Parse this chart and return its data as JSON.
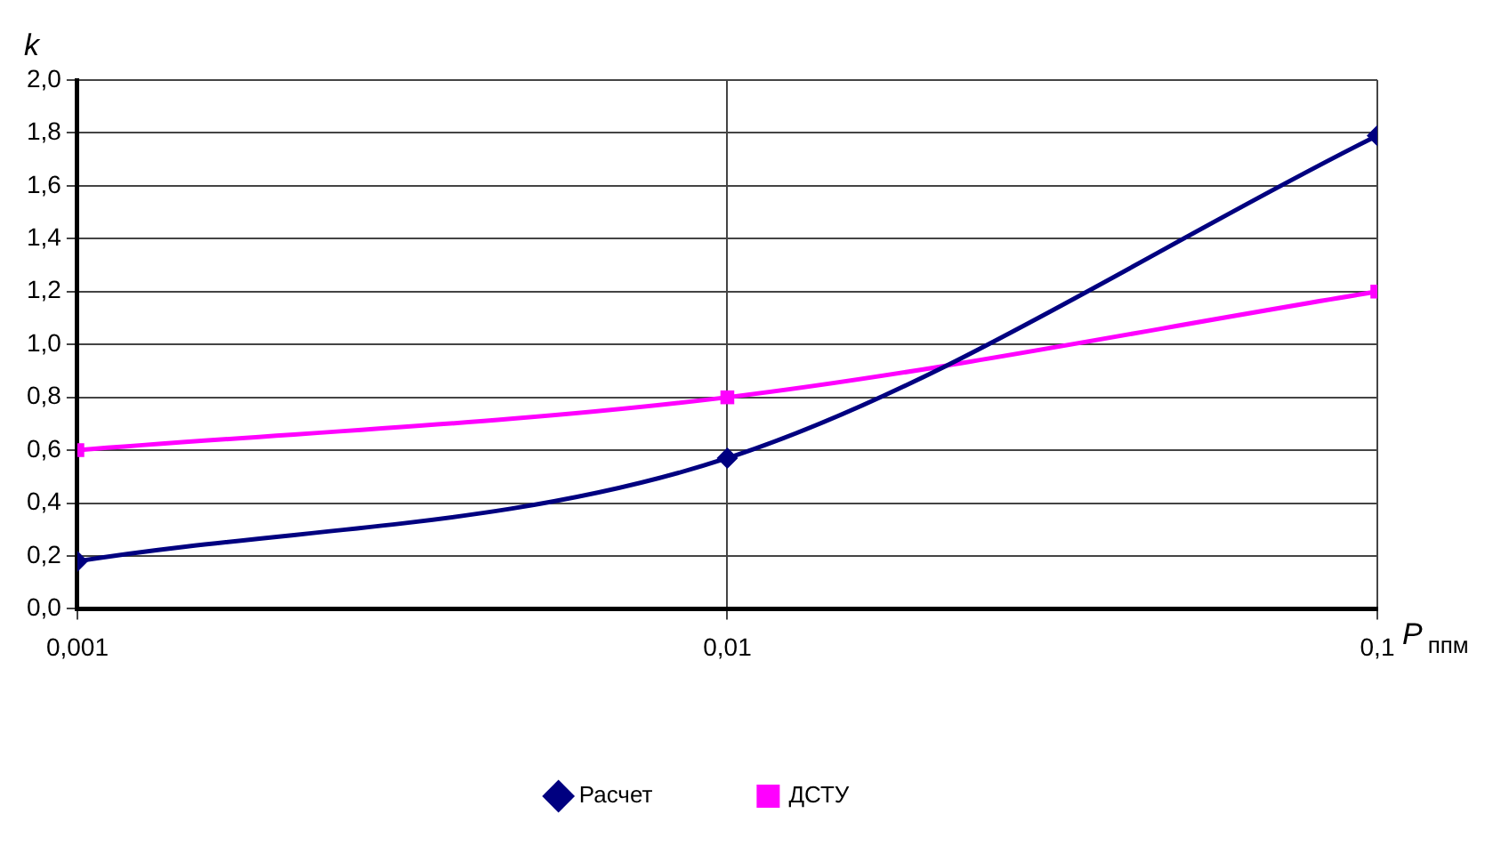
{
  "chart_data": {
    "type": "line",
    "xlabel": "P$_{ппм}$",
    "ylabel": "k",
    "x": [
      0.001,
      0.01,
      0.1
    ],
    "series": [
      {
        "name": "Расчет",
        "color": "#000080",
        "marker": "diamond",
        "values": [
          0.18,
          0.57,
          1.79
        ]
      },
      {
        "name": "ДСТУ",
        "color": "#ff00ff",
        "marker": "square",
        "values": [
          0.6,
          0.8,
          1.2
        ]
      }
    ],
    "log": "x",
    "xlim": [
      0.001,
      0.1
    ],
    "xticks": [
      {
        "value": 0.001,
        "label": "0,001"
      },
      {
        "value": 0.01,
        "label": "0,01"
      },
      {
        "value": 0.1,
        "label": "0,1"
      }
    ],
    "ylim": [
      0,
      2
    ],
    "yticks": [
      {
        "value": 0,
        "label": "0,0"
      },
      {
        "value": 0.2,
        "label": "0,2"
      },
      {
        "value": 0.4,
        "label": "0,4"
      },
      {
        "value": 0.6,
        "label": "0,6"
      },
      {
        "value": 0.8,
        "label": "0,8"
      },
      {
        "value": 1,
        "label": "1,0"
      },
      {
        "value": 1.2,
        "label": "1,2"
      },
      {
        "value": 1.4,
        "label": "1,4"
      },
      {
        "value": 1.6,
        "label": "1,6"
      },
      {
        "value": 1.8,
        "label": "1,8"
      },
      {
        "value": 2,
        "label": "2,0"
      }
    ],
    "grid": true,
    "legend": "bottom"
  }
}
